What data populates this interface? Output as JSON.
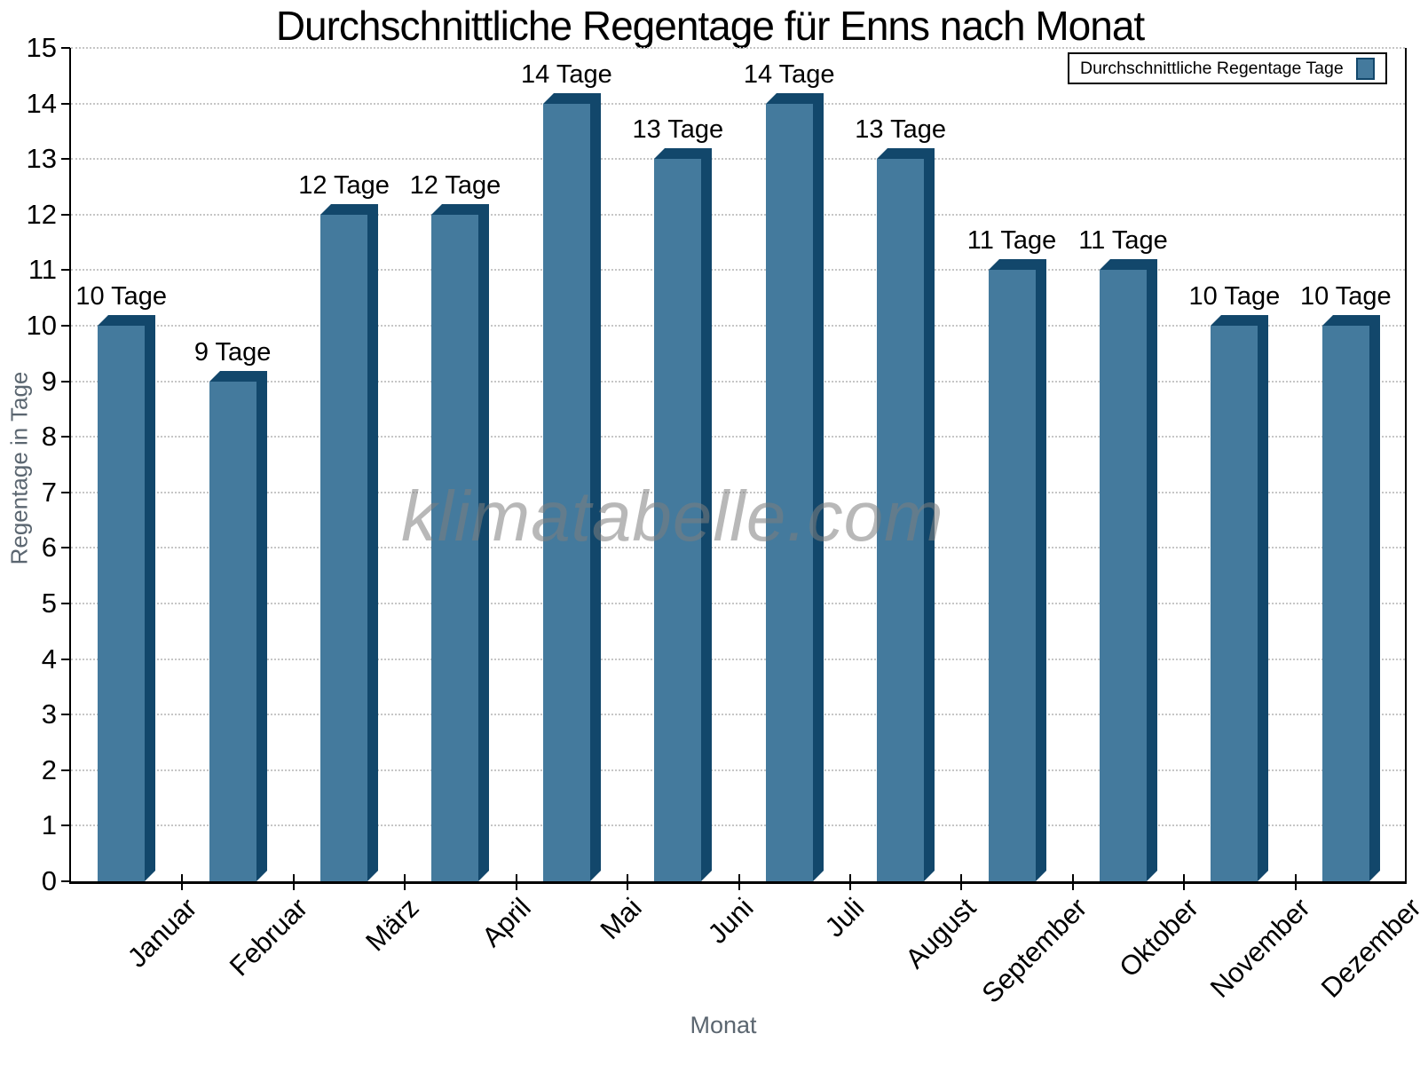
{
  "watermark": "klimatabelle.com",
  "chart_data": {
    "type": "bar",
    "title": "Durchschnittliche Regentage für Enns nach Monat",
    "xlabel": "Monat",
    "ylabel": "Regentage in Tage",
    "categories": [
      "Januar",
      "Februar",
      "März",
      "April",
      "Mai",
      "Juni",
      "Juli",
      "August",
      "September",
      "Oktober",
      "November",
      "Dezember"
    ],
    "values": [
      10,
      9,
      12,
      12,
      14,
      13,
      14,
      13,
      11,
      11,
      10,
      10
    ],
    "bar_labels": [
      "10 Tage",
      "9 Tage",
      "12 Tage",
      "12 Tage",
      "14 Tage",
      "13 Tage",
      "14 Tage",
      "13 Tage",
      "11 Tage",
      "11 Tage",
      "10 Tage",
      "10 Tage"
    ],
    "bar_label_suffix": "Tage",
    "ylim": [
      0,
      15
    ],
    "ytick_step": 1,
    "grid": "horizontal-dotted",
    "legend_label": "Durchschnittliche Regentage Tage",
    "legend_position": "top-right",
    "colors": {
      "bar_face": "#447A9D",
      "bar_edge": "#12476B",
      "grid": "#C6C6C6",
      "axis": "#000000",
      "axis_title": "#5B6670",
      "tick_label": "#000000",
      "watermark": "#7D7D7D"
    }
  }
}
